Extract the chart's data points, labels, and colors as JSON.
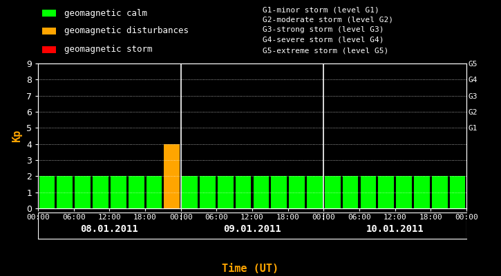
{
  "background_color": "#000000",
  "plot_bg_color": "#000000",
  "text_color": "#ffffff",
  "orange_color": "#FFA500",
  "green_color": "#00FF00",
  "red_color": "#FF0000",
  "days": [
    "08.01.2011",
    "09.01.2011",
    "10.01.2011"
  ],
  "kp_values": [
    2,
    2,
    2,
    2,
    2,
    2,
    2,
    4,
    2,
    2,
    2,
    2,
    2,
    2,
    2,
    2,
    2,
    2,
    2,
    2,
    2,
    2,
    2,
    2
  ],
  "bar_colors": [
    "#00FF00",
    "#00FF00",
    "#00FF00",
    "#00FF00",
    "#00FF00",
    "#00FF00",
    "#00FF00",
    "#FFA500",
    "#00FF00",
    "#00FF00",
    "#00FF00",
    "#00FF00",
    "#00FF00",
    "#00FF00",
    "#00FF00",
    "#00FF00",
    "#00FF00",
    "#00FF00",
    "#00FF00",
    "#00FF00",
    "#00FF00",
    "#00FF00",
    "#00FF00",
    "#00FF00"
  ],
  "ylim": [
    0,
    9
  ],
  "yticks": [
    0,
    1,
    2,
    3,
    4,
    5,
    6,
    7,
    8,
    9
  ],
  "right_labels": [
    {
      "y": 9,
      "text": "G5"
    },
    {
      "y": 8,
      "text": "G4"
    },
    {
      "y": 7,
      "text": "G3"
    },
    {
      "y": 6,
      "text": "G2"
    },
    {
      "y": 5,
      "text": "G1"
    }
  ],
  "xlabel": "Time (UT)",
  "ylabel": "Kp",
  "legend_items": [
    {
      "color": "#00FF00",
      "label": "geomagnetic calm"
    },
    {
      "color": "#FFA500",
      "label": "geomagnetic disturbances"
    },
    {
      "color": "#FF0000",
      "label": "geomagnetic storm"
    }
  ],
  "g_level_labels": [
    "G1-minor storm (level G1)",
    "G2-moderate storm (level G2)",
    "G3-strong storm (level G3)",
    "G4-severe storm (level G4)",
    "G5-extreme storm (level G5)"
  ],
  "day_dividers": [
    8,
    16
  ],
  "font_family": "monospace"
}
